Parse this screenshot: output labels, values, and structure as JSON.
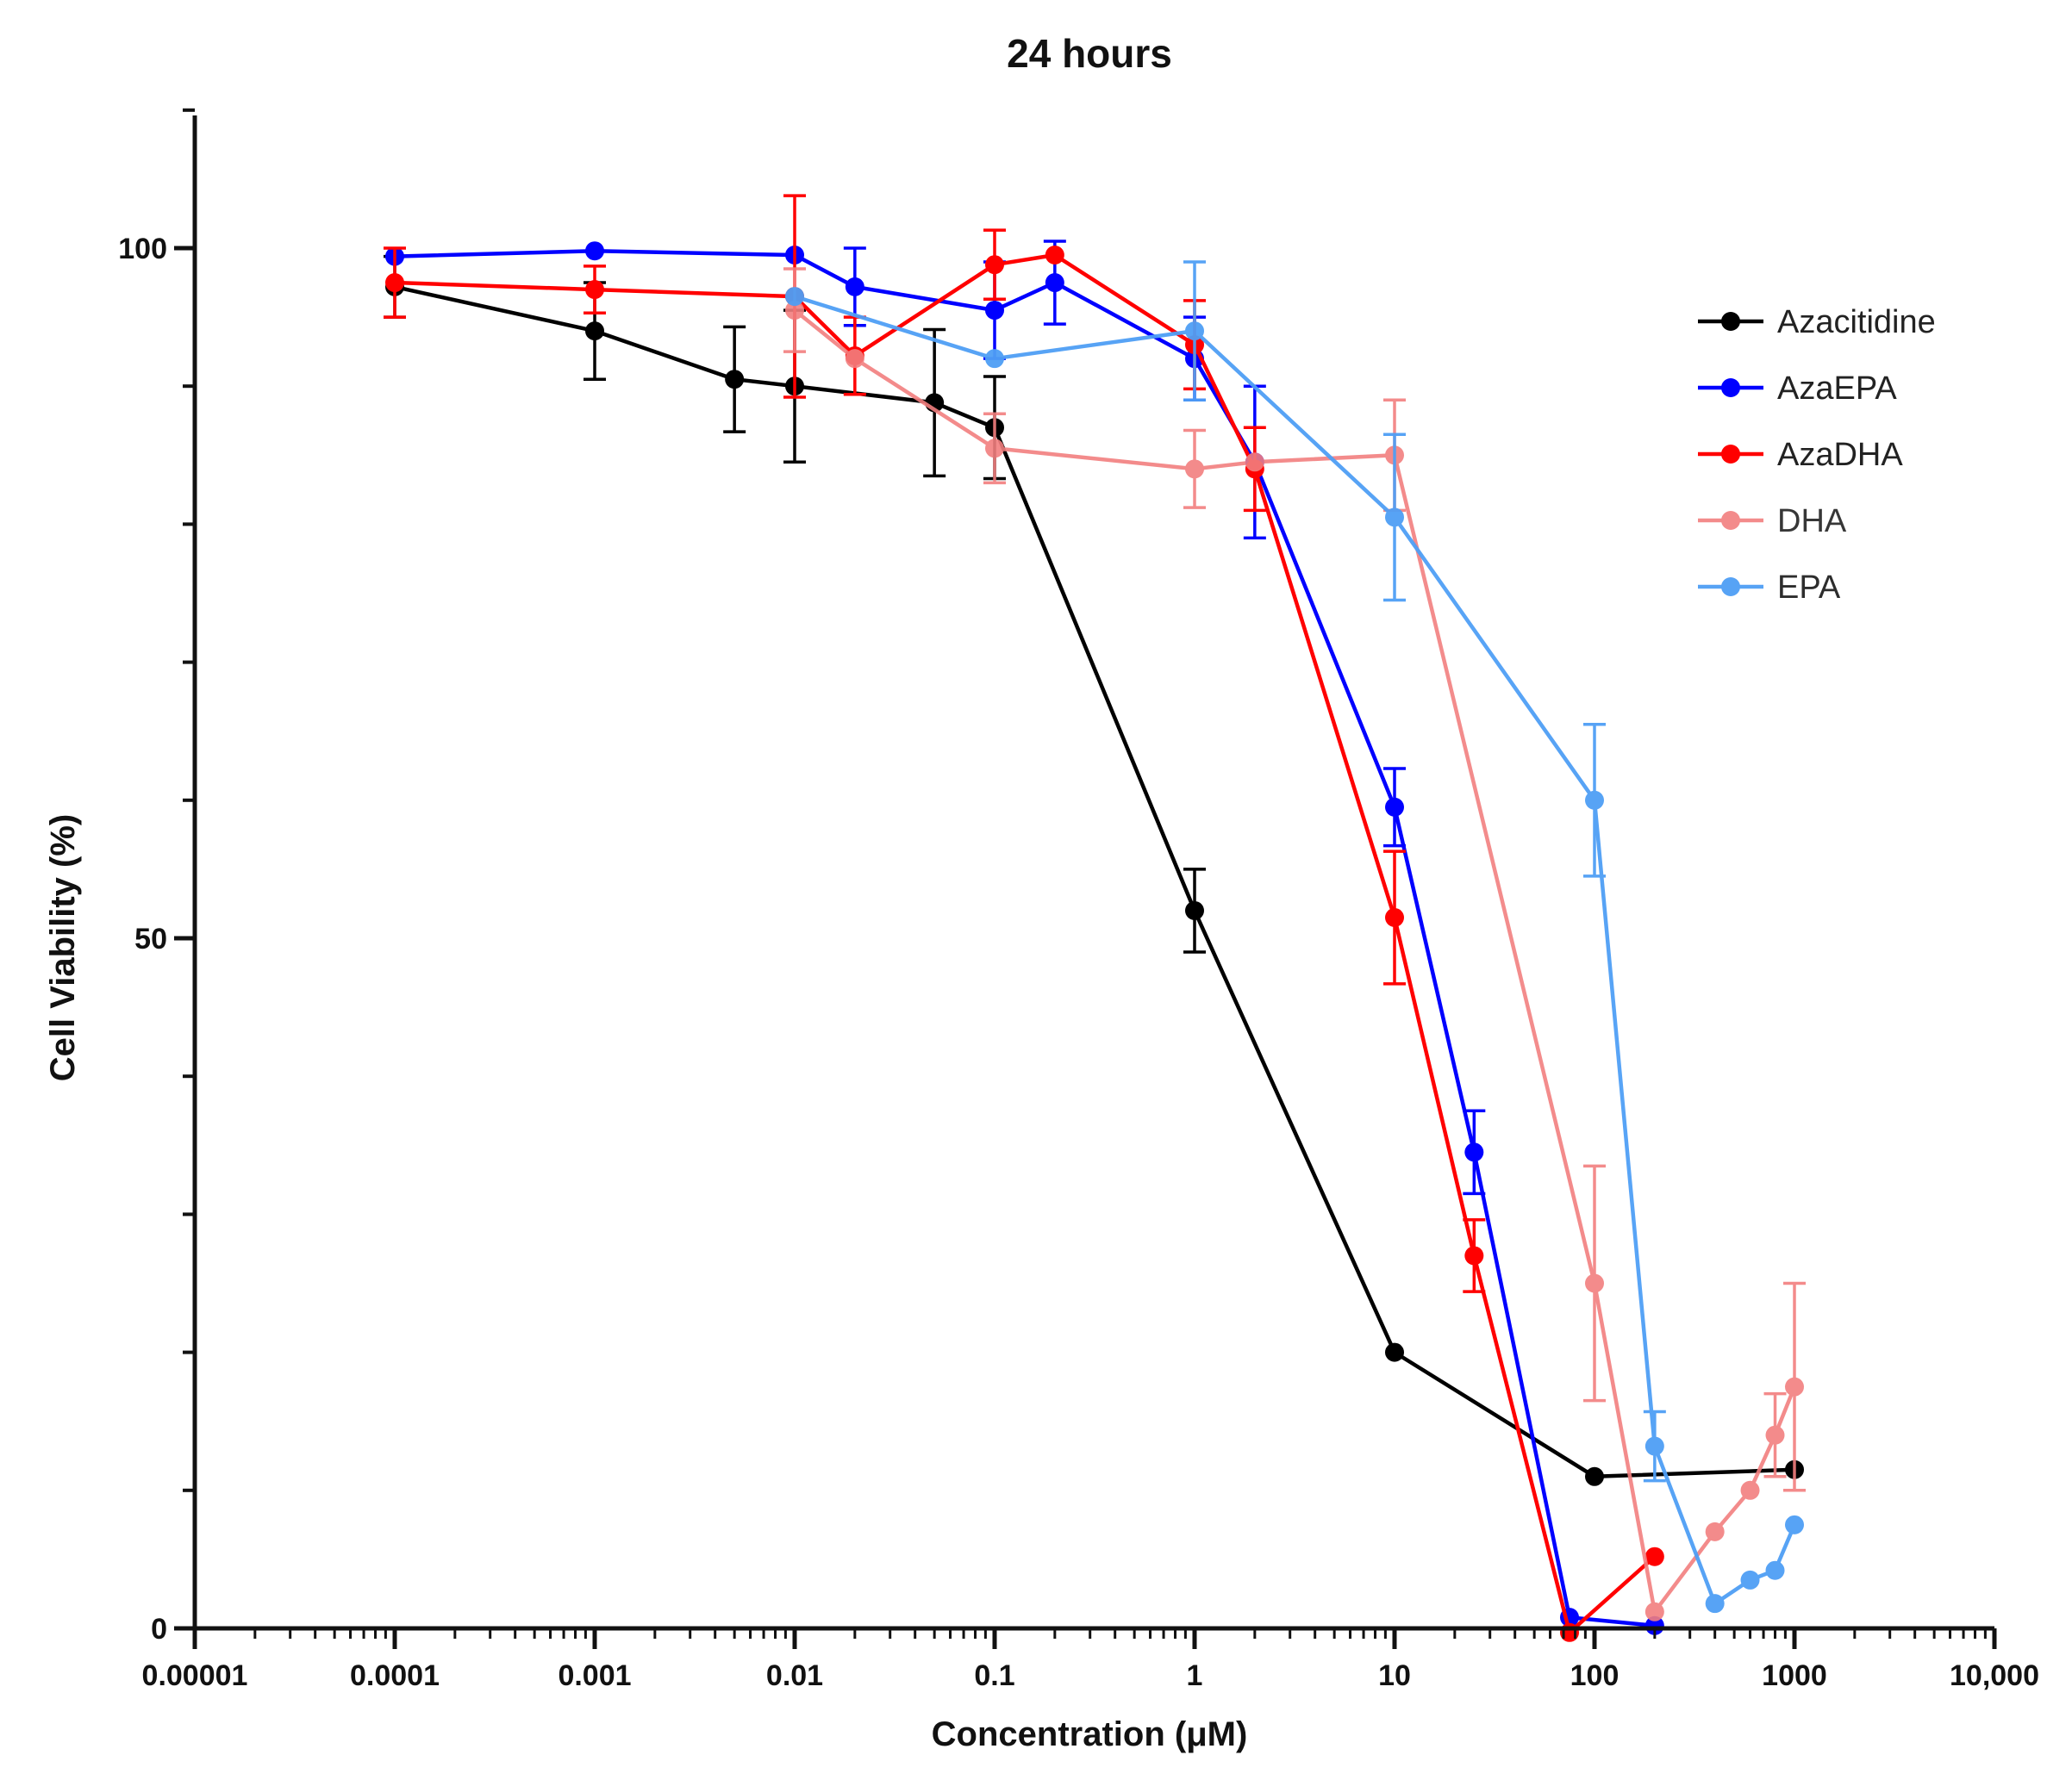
{
  "chart_data": {
    "type": "line",
    "title": "24 hours",
    "xlabel": "Concentration (μM)",
    "ylabel": "Cell Viability (%)",
    "xscale": "log",
    "xlim": [
      1e-05,
      10000
    ],
    "ylim": [
      0,
      110
    ],
    "x_ticks": [
      {
        "value": 1e-05,
        "label": "0.00001"
      },
      {
        "value": 0.0001,
        "label": "0.0001"
      },
      {
        "value": 0.001,
        "label": "0.001"
      },
      {
        "value": 0.01,
        "label": "0.01"
      },
      {
        "value": 0.1,
        "label": "0.1"
      },
      {
        "value": 1,
        "label": "1"
      },
      {
        "value": 10,
        "label": "10"
      },
      {
        "value": 100,
        "label": "100"
      },
      {
        "value": 1000,
        "label": "1000"
      },
      {
        "value": 10000,
        "label": "10,000"
      }
    ],
    "y_ticks": [
      {
        "value": 0,
        "label": "0"
      },
      {
        "value": 50,
        "label": "50"
      },
      {
        "value": 100,
        "label": "100"
      }
    ],
    "legend_position": "top-right",
    "series": [
      {
        "name": "Azacitidine",
        "color": "#000000",
        "opacity": 1,
        "points": [
          {
            "x": 0.0001,
            "y": 97.2,
            "err": 2.2
          },
          {
            "x": 0.001,
            "y": 94.0,
            "err": 3.5
          },
          {
            "x": 0.005,
            "y": 90.5,
            "err": 3.8
          },
          {
            "x": 0.01,
            "y": 90.0,
            "err": 5.5
          },
          {
            "x": 0.05,
            "y": 88.8,
            "err": 5.3
          },
          {
            "x": 0.1,
            "y": 87.0,
            "err": 3.7
          },
          {
            "x": 1,
            "y": 52.0,
            "err": 3.0
          },
          {
            "x": 10,
            "y": 20.0
          },
          {
            "x": 100,
            "y": 11.0
          },
          {
            "x": 1000,
            "y": 11.5
          }
        ]
      },
      {
        "name": "AzaEPA",
        "color": "#0000ff",
        "opacity": 1,
        "points": [
          {
            "x": 0.0001,
            "y": 99.4
          },
          {
            "x": 0.001,
            "y": 99.8
          },
          {
            "x": 0.01,
            "y": 99.5
          },
          {
            "x": 0.02,
            "y": 97.2,
            "err": 2.8
          },
          {
            "x": 0.1,
            "y": 95.5,
            "err": 3.5
          },
          {
            "x": 0.2,
            "y": 97.5,
            "err": 3.0
          },
          {
            "x": 1,
            "y": 92.0,
            "err": 3.0
          },
          {
            "x": 2,
            "y": 84.5,
            "err": 5.5
          },
          {
            "x": 10,
            "y": 59.5,
            "err": 2.8
          },
          {
            "x": 25,
            "y": 34.5,
            "err": 3.0
          },
          {
            "x": 75,
            "y": 0.8
          },
          {
            "x": 200,
            "y": 0.2
          }
        ]
      },
      {
        "name": "AzaDHA",
        "color": "#ff0000",
        "opacity": 1,
        "points": [
          {
            "x": 0.0001,
            "y": 97.5,
            "err": 2.5
          },
          {
            "x": 0.001,
            "y": 97.0,
            "err": 1.7
          },
          {
            "x": 0.01,
            "y": 96.5,
            "err": 7.3
          },
          {
            "x": 0.02,
            "y": 92.2,
            "err": 2.8
          },
          {
            "x": 0.1,
            "y": 98.8,
            "err": 2.5
          },
          {
            "x": 0.2,
            "y": 99.5
          },
          {
            "x": 1,
            "y": 93.0,
            "err": 3.2
          },
          {
            "x": 2,
            "y": 84.0,
            "err": 3.0
          },
          {
            "x": 10,
            "y": 51.5,
            "err": 4.8
          },
          {
            "x": 25,
            "y": 27.0,
            "err": 2.6
          },
          {
            "x": 75,
            "y": -0.3
          },
          {
            "x": 200,
            "y": 5.2
          }
        ]
      },
      {
        "name": "DHA",
        "color": "#f27f7f",
        "opacity": 0.9,
        "points": [
          {
            "x": 0.01,
            "y": 95.5,
            "err": 3.0
          },
          {
            "x": 0.02,
            "y": 92.0
          },
          {
            "x": 0.1,
            "y": 85.5,
            "err": 2.5
          },
          {
            "x": 1,
            "y": 84.0,
            "err": 2.8
          },
          {
            "x": 2,
            "y": 84.5
          },
          {
            "x": 10,
            "y": 85.0,
            "err": 4.0
          },
          {
            "x": 100,
            "y": 25.0,
            "err": 8.5
          },
          {
            "x": 200,
            "y": 1.2
          },
          {
            "x": 400,
            "y": 7.0
          },
          {
            "x": 600,
            "y": 10.0
          },
          {
            "x": 800,
            "y": 14.0,
            "err": 3.0
          },
          {
            "x": 1000,
            "y": 17.5,
            "err": 7.5
          }
        ]
      },
      {
        "name": "EPA",
        "color": "#4f9ff5",
        "opacity": 0.95,
        "points": [
          {
            "x": 0.01,
            "y": 96.5
          },
          {
            "x": 0.1,
            "y": 92.0
          },
          {
            "x": 1,
            "y": 94.0,
            "err": 5.0
          },
          {
            "x": 10,
            "y": 80.5,
            "err": 6.0
          },
          {
            "x": 100,
            "y": 60.0,
            "err": 5.5
          },
          {
            "x": 200,
            "y": 13.2,
            "err": 2.5
          },
          {
            "x": 400,
            "y": 1.8
          },
          {
            "x": 600,
            "y": 3.5
          },
          {
            "x": 800,
            "y": 4.2
          },
          {
            "x": 1000,
            "y": 7.5
          }
        ]
      }
    ]
  }
}
